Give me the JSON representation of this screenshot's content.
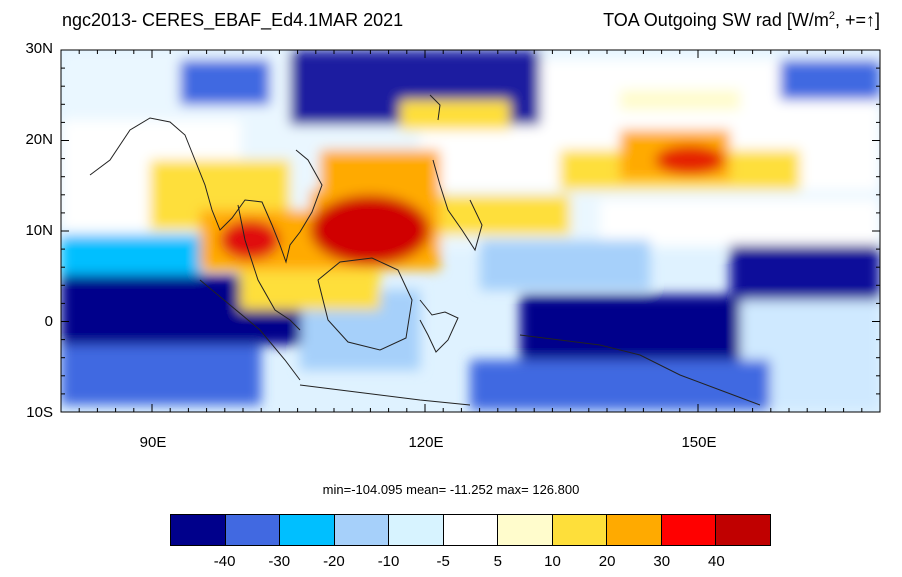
{
  "header": {
    "left_title": "ngc2013- CERES_EBAF_Ed4.1MAR 2021",
    "right_title_main": "TOA Outgoing SW rad [W/m",
    "right_title_sup": "2",
    "right_title_tail": ", +=",
    "right_title_arrow": "↑",
    "right_title_close": "]"
  },
  "map": {
    "lat_labels": [
      "30N",
      "20N",
      "10N",
      "0",
      "10S"
    ],
    "lon_labels": [
      "90E",
      "120E",
      "150E"
    ],
    "extent": {
      "lon_min": 80,
      "lon_max": 170,
      "lat_min": -10,
      "lat_max": 30
    }
  },
  "stats": {
    "text": "min=-104.095   mean= -11.252   max= 126.800",
    "min": -104.095,
    "mean": -11.252,
    "max": 126.8
  },
  "colorbar": {
    "colors": [
      "#00008b",
      "#4169e1",
      "#00bfff",
      "#a6d0fa",
      "#d7f3ff",
      "#ffffff",
      "#fffccc",
      "#fedf3a",
      "#ffaa00",
      "#ff0000",
      "#c00000"
    ],
    "labels": [
      "-40",
      "-30",
      "-20",
      "-10",
      "-5",
      "5",
      "10",
      "20",
      "30",
      "40"
    ]
  }
}
